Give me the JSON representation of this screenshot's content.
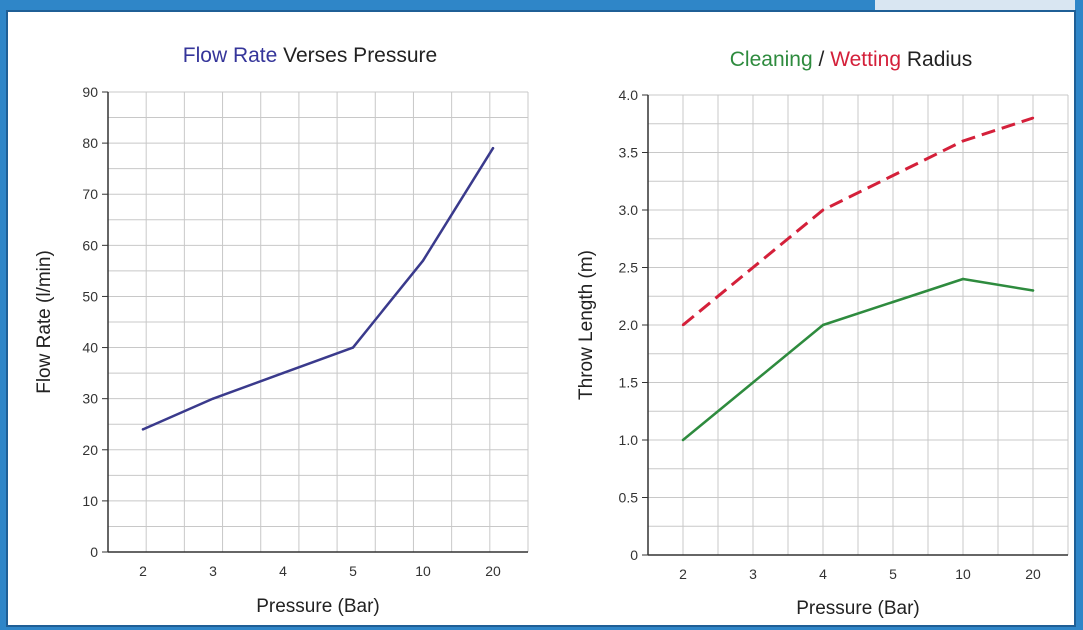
{
  "colors": {
    "page_background": "#2f86c8",
    "panel_background": "#ffffff",
    "grid": "#c8c8c8",
    "axis": "#333333",
    "flow_rate_title": "#35359a",
    "flow_rate_line": "#3a3a8c",
    "cleaning": "#2e8b3e",
    "wetting": "#d4203a",
    "title_rest": "#222222"
  },
  "chart_data": [
    {
      "type": "line",
      "title_parts": [
        {
          "text": "Flow Rate",
          "color_key": "flow_rate_title"
        },
        {
          "text": " Verses Pressure",
          "color_key": "title_rest"
        }
      ],
      "xlabel": "Pressure (Bar)",
      "ylabel": "Flow Rate (l/min)",
      "categories": [
        "2",
        "3",
        "4",
        "5",
        "10",
        "20"
      ],
      "ylim": [
        0,
        90
      ],
      "yticks": [
        "0",
        "10",
        "20",
        "30",
        "40",
        "50",
        "60",
        "70",
        "80",
        "90"
      ],
      "grid": true,
      "series": [
        {
          "values": [
            24,
            30,
            35,
            40,
            57,
            79
          ],
          "color_key": "flow_rate_line",
          "dashed": false
        }
      ]
    },
    {
      "type": "line",
      "title_parts": [
        {
          "text": "Cleaning",
          "color_key": "cleaning"
        },
        {
          "text": " / ",
          "color_key": "title_rest"
        },
        {
          "text": "Wetting",
          "color_key": "wetting"
        },
        {
          "text": " Radius",
          "color_key": "title_rest"
        }
      ],
      "xlabel": "Pressure (Bar)",
      "ylabel": "Throw Length (m)",
      "categories": [
        "2",
        "3",
        "4",
        "5",
        "10",
        "20"
      ],
      "ylim": [
        0,
        4.0
      ],
      "yticks": [
        "0",
        "0.5",
        "1.0",
        "1.5",
        "2.0",
        "2.5",
        "3.0",
        "3.5",
        "4.0"
      ],
      "grid": true,
      "series": [
        {
          "name": "Cleaning",
          "values": [
            1.0,
            1.5,
            2.0,
            2.2,
            2.4,
            2.3
          ],
          "color_key": "cleaning",
          "dashed": false
        },
        {
          "name": "Wetting",
          "values": [
            2.0,
            2.5,
            3.0,
            3.3,
            3.6,
            3.8
          ],
          "color_key": "wetting",
          "dashed": true
        }
      ]
    }
  ]
}
